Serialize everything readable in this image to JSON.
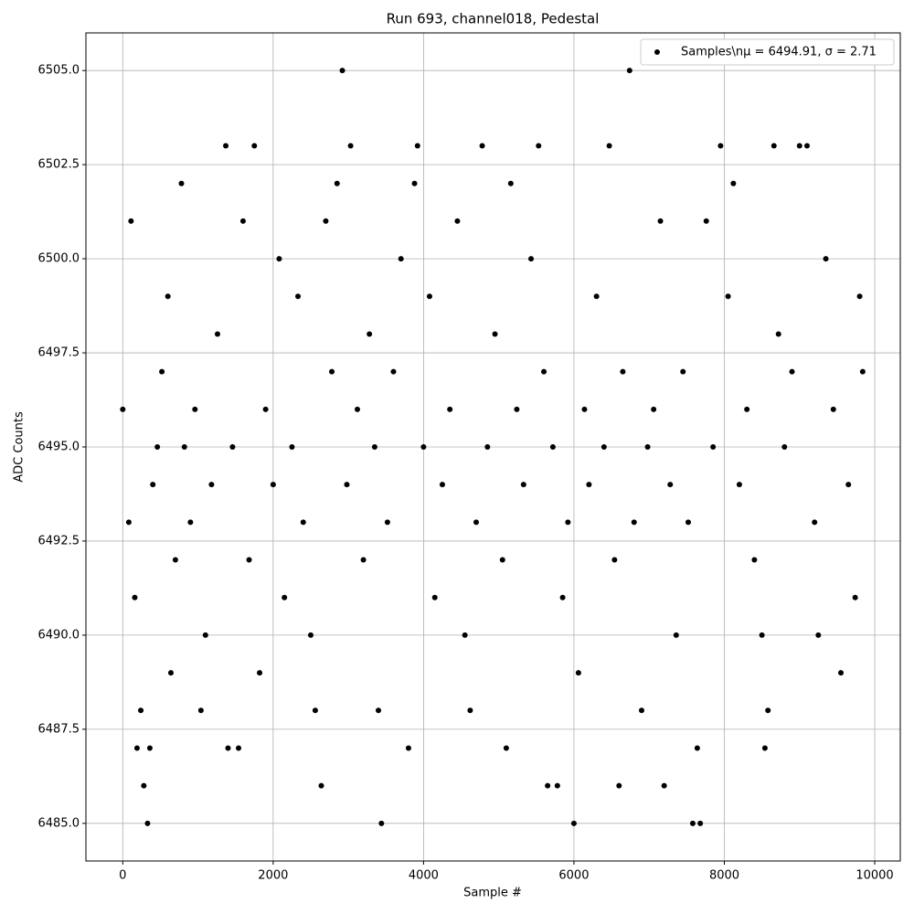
{
  "chart_data": {
    "type": "scatter",
    "title": "Run 693, channel018, Pedestal",
    "x_label": "Sample #",
    "y_label": "ADC Counts",
    "xlim": [
      -490,
      10340
    ],
    "ylim": [
      6484,
      6506
    ],
    "xticks": [
      0,
      2000,
      4000,
      6000,
      8000,
      10000
    ],
    "yticks": [
      {
        "value": 6485,
        "label": "6485.0"
      },
      {
        "value": 6487.5,
        "label": "6487.5"
      },
      {
        "value": 6490,
        "label": "6490.0"
      },
      {
        "value": 6492.5,
        "label": "6492.5"
      },
      {
        "value": 6495,
        "label": "6495.0"
      },
      {
        "value": 6497.5,
        "label": "6497.5"
      },
      {
        "value": 6500,
        "label": "6500.0"
      },
      {
        "value": 6502.5,
        "label": "6502.5"
      },
      {
        "value": 6505,
        "label": "6505.0"
      }
    ],
    "grid": true,
    "legend": "upper right",
    "series": [
      {
        "name": "Samples\\nμ = 6494.91, σ = 2.71",
        "color": "#000000",
        "x": [
          0,
          80,
          110,
          160,
          190,
          240,
          280,
          330,
          360,
          400,
          460,
          520,
          600,
          640,
          700,
          780,
          820,
          900,
          960,
          1040,
          1100,
          1180,
          1260,
          1370,
          1400,
          1460,
          1540,
          1600,
          1680,
          1750,
          1820,
          1900,
          2000,
          2080,
          2150,
          2250,
          2330,
          2400,
          2500,
          2560,
          2640,
          2700,
          2780,
          2850,
          2920,
          2980,
          3030,
          3120,
          3200,
          3280,
          3350,
          3400,
          3440,
          3520,
          3600,
          3700,
          3800,
          3880,
          3920,
          4000,
          4080,
          4150,
          4250,
          4350,
          4450,
          4550,
          4620,
          4700,
          4780,
          4850,
          4950,
          5050,
          5100,
          5160,
          5240,
          5330,
          5430,
          5530,
          5600,
          5650,
          5720,
          5780,
          5850,
          5920,
          6000,
          6060,
          6140,
          6200,
          6300,
          6400,
          6470,
          6540,
          6600,
          6650,
          6740,
          6800,
          6900,
          6980,
          7060,
          7150,
          7200,
          7280,
          7360,
          7450,
          7520,
          7580,
          7640,
          7680,
          7760,
          7850,
          7950,
          8050,
          8120,
          8200,
          8300,
          8400,
          8500,
          8540,
          8580,
          8660,
          8720,
          8800,
          8900,
          9000,
          9100,
          9200,
          9250,
          9350,
          9450,
          9550,
          9650,
          9740,
          9800,
          9840
        ],
        "values": [
          6496,
          6493,
          6501,
          6491,
          6487,
          6488,
          6486,
          6485,
          6487,
          6494,
          6495,
          6497,
          6499,
          6489,
          6492,
          6502,
          6495,
          6493,
          6496,
          6488,
          6490,
          6494,
          6498,
          6503,
          6487,
          6495,
          6487,
          6501,
          6492,
          6503,
          6489,
          6496,
          6494,
          6500,
          6491,
          6495,
          6499,
          6493,
          6490,
          6488,
          6486,
          6501,
          6497,
          6502,
          6505,
          6494,
          6503,
          6496,
          6492,
          6498,
          6495,
          6488,
          6485,
          6493,
          6497,
          6500,
          6487,
          6502,
          6503,
          6495,
          6499,
          6491,
          6494,
          6496,
          6501,
          6490,
          6488,
          6493,
          6503,
          6495,
          6498,
          6492,
          6487,
          6502,
          6496,
          6494,
          6500,
          6503,
          6497,
          6486,
          6495,
          6486,
          6491,
          6493,
          6485,
          6489,
          6496,
          6494,
          6499,
          6495,
          6503,
          6492,
          6486,
          6497,
          6505,
          6493,
          6488,
          6495,
          6496,
          6501,
          6486,
          6494,
          6490,
          6497,
          6493,
          6485,
          6487,
          6485,
          6501,
          6495,
          6503,
          6499,
          6502,
          6494,
          6496,
          6492,
          6490,
          6487,
          6488,
          6503,
          6498,
          6495,
          6497,
          6503,
          6503,
          6493,
          6490,
          6500,
          6496,
          6489,
          6494,
          6491,
          6499,
          6497
        ]
      }
    ]
  }
}
